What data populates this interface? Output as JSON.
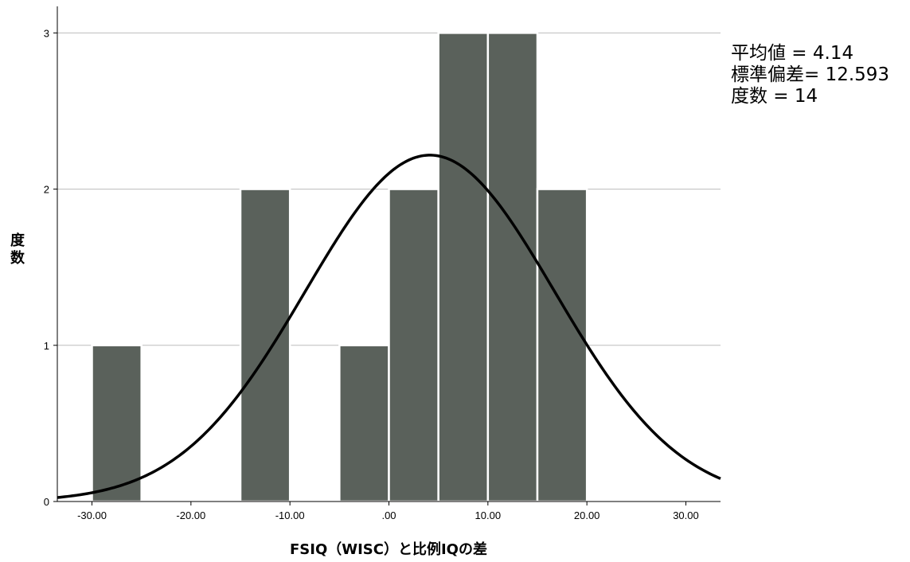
{
  "chart_data": {
    "type": "histogram",
    "xlabel": "FSIQ（WISC）と比例IQの差",
    "ylabel": "度数",
    "xlim": [
      -33.5,
      33.5
    ],
    "ylim": [
      0,
      3.17
    ],
    "x_ticks": [
      -30,
      -20,
      -10,
      0,
      10,
      20,
      30
    ],
    "x_tick_labels": [
      "-30.00",
      "-20.00",
      "-10.00",
      ".00",
      "10.00",
      "20.00",
      "30.00"
    ],
    "y_ticks": [
      0,
      1,
      2,
      3
    ],
    "y_tick_labels": [
      "0",
      "1",
      "2",
      "3"
    ],
    "grid": "horizontal",
    "bins": [
      {
        "from": -30,
        "to": -25,
        "count": 1
      },
      {
        "from": -15,
        "to": -10,
        "count": 2
      },
      {
        "from": -5,
        "to": 0,
        "count": 1
      },
      {
        "from": 0,
        "to": 5,
        "count": 2
      },
      {
        "from": 5,
        "to": 10,
        "count": 3
      },
      {
        "from": 10,
        "to": 15,
        "count": 3
      },
      {
        "from": 15,
        "to": 20,
        "count": 2
      }
    ],
    "bar_color": "#5a615b",
    "normal_curve": {
      "mean": 4.14,
      "sd": 12.593,
      "n": 14,
      "bin_width": 5,
      "color": "#000000"
    },
    "stats_labels": [
      "平均値 = 4.14",
      "標準偏差= 12.593",
      "度数 = 14"
    ]
  }
}
